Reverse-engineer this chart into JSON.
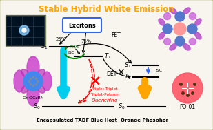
{
  "title": "Stable Hybrid White Emission",
  "title_color": "#FFA500",
  "bg_color": "#F7F5EE",
  "border_color": "#C8C890",
  "left_label": "Encapsulated TADF Blue Host",
  "right_label": "Orange Phosphor",
  "excitons_label": "Excitons",
  "excitons_box_color": "#3366EE",
  "fet_label": "FET",
  "det_label": "DET",
  "isc_label": "ISC",
  "risc_label": "RISC",
  "isc_label_right": "ISC",
  "blue_arrow_color": "#00CCEE",
  "orange_arrow_color": "#FFA500",
  "quenching_line1": "Triplet-Triplet",
  "quenching_line2": "Triplet-Polaron",
  "quenching_line3": "Quenching",
  "quenching_color": "#FF0000",
  "quenching_italic": "Quenching",
  "percent_25": "25%",
  "percent_75": "75%",
  "cz_label": "Cz-OCzBN",
  "po_label": "PO-01"
}
